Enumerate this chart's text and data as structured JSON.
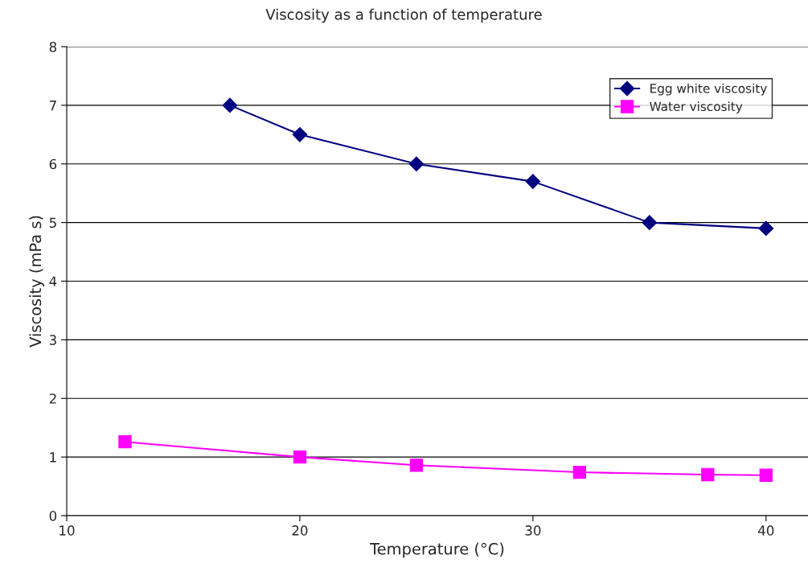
{
  "chart_data": {
    "type": "line",
    "title": "Viscosity as a function of temperature",
    "xlabel": "Temperature (°C)",
    "ylabel": "Viscosity (mPa s)",
    "series": [
      {
        "name": "Egg white viscosity",
        "color": "#000080",
        "marker": "diamond",
        "x": [
          17,
          20,
          25,
          30,
          35,
          40
        ],
        "values": [
          7.0,
          6.5,
          6.0,
          5.7,
          5.0,
          4.9
        ]
      },
      {
        "name": "Water viscosity",
        "color": "#ff00ff",
        "marker": "square",
        "x": [
          12.5,
          20,
          25,
          32,
          37.5,
          40
        ],
        "values": [
          1.26,
          1.0,
          0.86,
          0.74,
          0.7,
          0.69
        ]
      }
    ],
    "xlim": [
      10,
      41.8
    ],
    "xticks": [
      10,
      20,
      30,
      40
    ],
    "ylim": [
      0,
      8
    ],
    "yticks": [
      0,
      1,
      2,
      3,
      4,
      5,
      6,
      7,
      8
    ],
    "grid": "y",
    "legend": "top right",
    "line_style": "solid"
  }
}
